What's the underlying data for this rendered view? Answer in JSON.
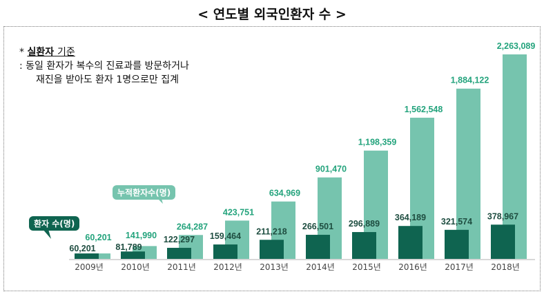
{
  "title": "< 연도별 외국인환자 수 >",
  "note": {
    "asterisk": "*",
    "bold": "실환자",
    "rest": "기준",
    "line1": ": 동일 환자가 복수의 진료과를 방문하거나",
    "line2": "재진을 받아도 환자 1명으로만 집계"
  },
  "colors": {
    "patients": "#0f6450",
    "cumulative": "#76c4ae",
    "cumulative_label": "#23a37c",
    "patients_label": "#1e4d40"
  },
  "chart_data": {
    "type": "bar",
    "categories": [
      "2009년",
      "2010년",
      "2011년",
      "2012년",
      "2013년",
      "2014년",
      "2015년",
      "2016년",
      "2017년",
      "2018년"
    ],
    "series": [
      {
        "name": "환자 수(명)",
        "values": [
          60201,
          81789,
          122297,
          159464,
          211218,
          266501,
          296889,
          364189,
          321574,
          378967
        ],
        "labels": [
          "60,201",
          "81,789",
          "122,297",
          "159,464",
          "211,218",
          "266,501",
          "296,889",
          "364,189",
          "321,574",
          "378,967"
        ]
      },
      {
        "name": "누적환자수(명)",
        "values": [
          60201,
          141990,
          264287,
          423751,
          634969,
          901470,
          1198359,
          1562548,
          1884122,
          2263089
        ],
        "labels": [
          "60,201",
          "141,990",
          "264,287",
          "423,751",
          "634,969",
          "901,470",
          "1,198,359",
          "1,562,548",
          "1,884,122",
          "2,263,089"
        ]
      }
    ],
    "ylim": [
      0,
      2263089
    ],
    "grid": false
  }
}
